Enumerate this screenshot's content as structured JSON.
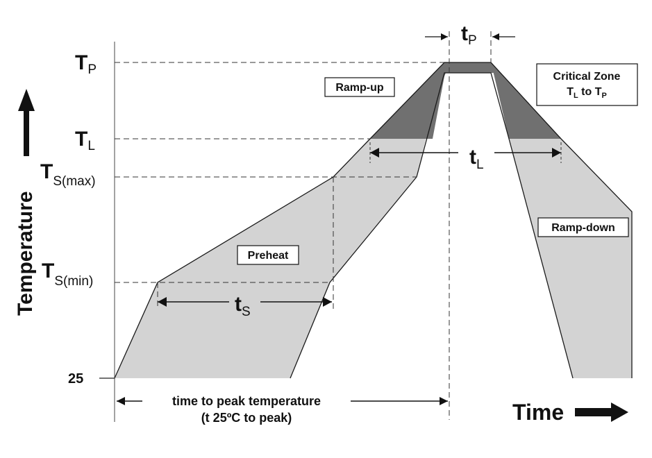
{
  "diagram": {
    "y_axis": {
      "title": "Temperature"
    },
    "x_axis": {
      "title": "Time"
    },
    "levels": {
      "tp": {
        "main": "T",
        "sub": "P"
      },
      "tl": {
        "main": "T",
        "sub": "L"
      },
      "tsmax": {
        "main": "T",
        "sub": "S(max)"
      },
      "tsmin": {
        "main": "T",
        "sub": "S(min)"
      },
      "t25": {
        "main": "25"
      }
    },
    "intervals": {
      "tp": {
        "main": "t",
        "sub": "P"
      },
      "tl": {
        "main": "t",
        "sub": "L"
      },
      "ts": {
        "main": "t",
        "sub": "S"
      }
    },
    "regions": {
      "ramp_up": "Ramp-up",
      "ramp_down": "Ramp-down",
      "preheat": "Preheat",
      "critical_zone": {
        "line1": "Critical Zone",
        "line2_a": "T",
        "line2_a_sub": "L",
        "line2_mid": " to T",
        "line2_b_sub": "P"
      }
    },
    "peak_time": {
      "line1": "time to peak temperature",
      "line2": "(t 25ºC to peak)"
    },
    "colors": {
      "band": "#d3d3d3",
      "critical": "#707070",
      "line": "#1a1a1a"
    }
  }
}
